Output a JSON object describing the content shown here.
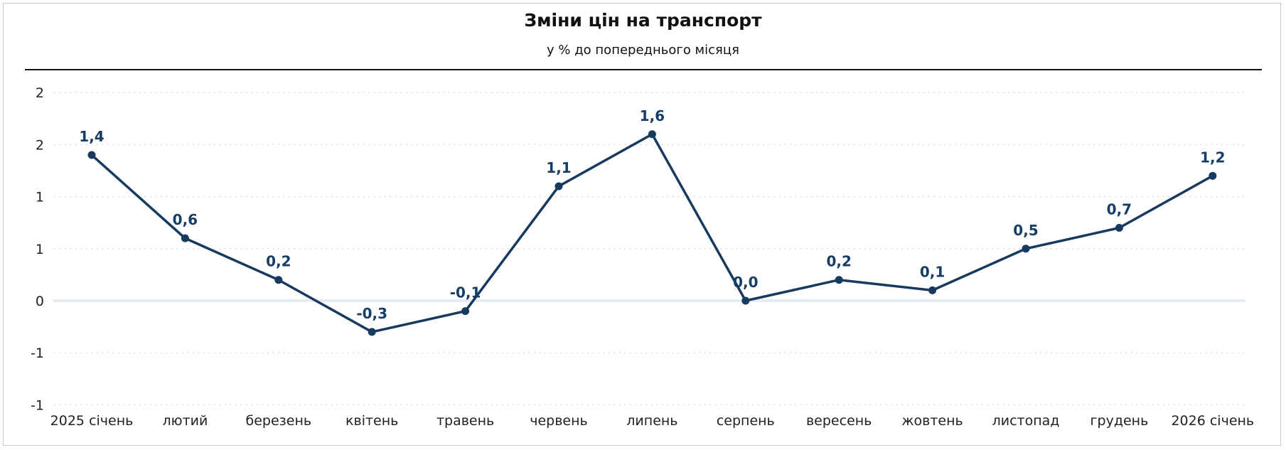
{
  "header": {
    "title": "Зміни цін на транспорт",
    "subtitle": "у % до попереднього місяця"
  },
  "colors": {
    "line": "#173a5e",
    "label": "#163e66",
    "zero_line": "#e6ecf2",
    "grid": "#d4d4d4"
  },
  "chart_data": {
    "type": "line",
    "title": "Зміни цін на транспорт",
    "subtitle": "у % до попереднього місяця",
    "xlabel": "",
    "ylabel": "",
    "categories": [
      "2025 січень",
      "лютий",
      "березень",
      "квітень",
      "травень",
      "червень",
      "липень",
      "серпень",
      "вересень",
      "жовтень",
      "листопад",
      "грудень",
      "2026 січень"
    ],
    "series": [
      {
        "name": "Зміни цін на транспорт",
        "values": [
          1.4,
          0.6,
          0.2,
          -0.3,
          -0.1,
          1.1,
          1.6,
          0.0,
          0.2,
          0.1,
          0.5,
          0.7,
          1.2
        ],
        "labels": [
          "1,4",
          "0,6",
          "0,2",
          "-0,3",
          "-0,1",
          "1,1",
          "1,6",
          "0,0",
          "0,2",
          "0,1",
          "0,5",
          "0,7",
          "1,2"
        ]
      }
    ],
    "y_ticks": [
      2.0,
      1.5,
      1.0,
      0.5,
      0.0,
      -0.5,
      -1.0
    ],
    "y_tick_labels": [
      "2",
      "2",
      "1",
      "1",
      "0",
      "-1",
      "-1"
    ],
    "ylim": [
      -1.0,
      2.0
    ],
    "grid": true,
    "legend": "none"
  }
}
